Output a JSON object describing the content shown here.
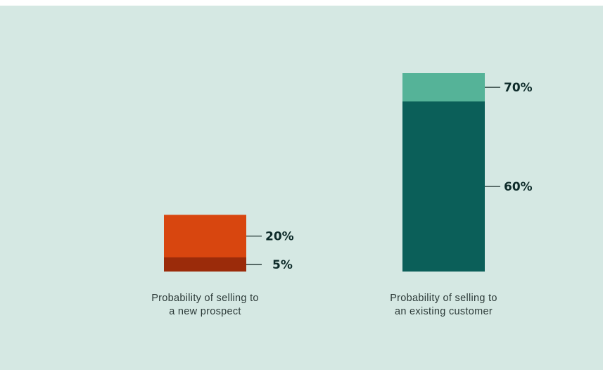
{
  "chart_data": {
    "type": "bar",
    "categories": [
      [
        "Probability of selling to",
        "a new prospect"
      ],
      [
        "Probability of selling to",
        "an existing customer"
      ]
    ],
    "series": [
      {
        "values": [
          5,
          60
        ],
        "colors": [
          "#9b2b0a",
          "#0b5f59"
        ],
        "labels": [
          "5%",
          "60%"
        ]
      },
      {
        "values": [
          20,
          70
        ],
        "colors": [
          "#d8460f",
          "#55b398"
        ],
        "labels": [
          "20%",
          "70%"
        ]
      }
    ],
    "stacked": "overlay",
    "ylim": [
      0,
      70
    ],
    "grid": false,
    "legend": "none"
  }
}
